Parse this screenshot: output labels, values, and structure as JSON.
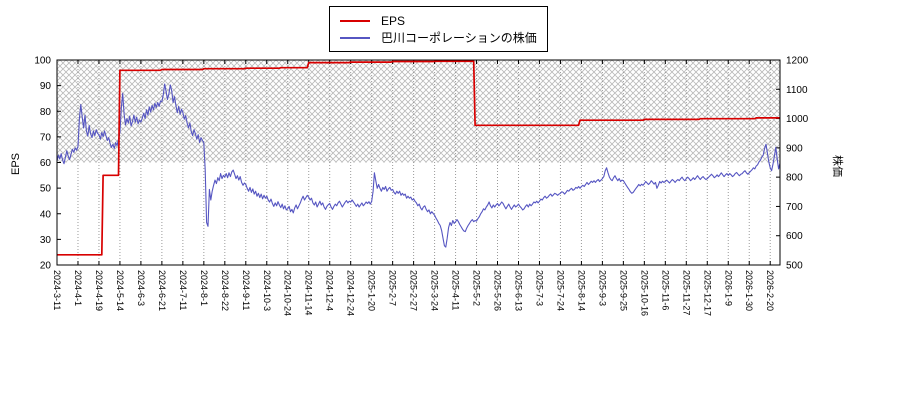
{
  "chart_data": {
    "type": "line",
    "title": "",
    "legend_position": "top-center",
    "label_interval": 15,
    "x_index_max": 517,
    "x_tick_labels": [
      "2024-3-11",
      "2024-4-1",
      "2024-4-19",
      "2024-5-14",
      "2024-6-3",
      "2024-6-21",
      "2024-7-11",
      "2024-8-1",
      "2024-8-22",
      "2024-9-11",
      "2024-10-3",
      "2024-10-24",
      "2024-11-14",
      "2024-12-4",
      "2024-12-24",
      "2025-1-20",
      "2025-2-7",
      "2025-2-27",
      "2025-3-24",
      "2025-4-11",
      "2025-5-2",
      "2025-5-26",
      "2025-6-13",
      "2025-7-3",
      "2025-7-24",
      "2025-8-14",
      "2025-9-3",
      "2025-9-25",
      "2025-10-16",
      "2025-11-6",
      "2025-11-27",
      "2025-12-17",
      "2026-1-9",
      "2026-1-30",
      "2026-2-20"
    ],
    "left_axis": {
      "label": "EPS",
      "min": 20,
      "max": 100,
      "ticks": [
        20,
        30,
        40,
        50,
        60,
        70,
        80,
        90,
        100
      ]
    },
    "right_axis": {
      "label": "株価",
      "min": 500,
      "max": 1200,
      "ticks": [
        500,
        600,
        700,
        800,
        900,
        1000,
        1100,
        1200
      ]
    },
    "band": {
      "axis": "left",
      "from": 60,
      "to": 100,
      "pattern": "crosshatch",
      "color": "#b9b9b9"
    },
    "grid": {
      "vertical": "dotted",
      "color": "#9a9a9a"
    },
    "frame_color": "#000000",
    "series": [
      {
        "name": "EPS",
        "axis": "left",
        "color": "#d80000",
        "points": [
          [
            0,
            24
          ],
          [
            32,
            24
          ],
          [
            33,
            55
          ],
          [
            44,
            55
          ],
          [
            45,
            96
          ],
          [
            74,
            96
          ],
          [
            75,
            96.3
          ],
          [
            104,
            96.3
          ],
          [
            105,
            96.6
          ],
          [
            134,
            96.6
          ],
          [
            135,
            96.8
          ],
          [
            159,
            96.8
          ],
          [
            160,
            97
          ],
          [
            179,
            97
          ],
          [
            180,
            99
          ],
          [
            209,
            99
          ],
          [
            210,
            99.2
          ],
          [
            239,
            99.2
          ],
          [
            240,
            99.4
          ],
          [
            269,
            99.4
          ],
          [
            270,
            99.5
          ],
          [
            298,
            99.5
          ],
          [
            299,
            74.5
          ],
          [
            373,
            74.5
          ],
          [
            374,
            76.5
          ],
          [
            419,
            76.5
          ],
          [
            420,
            76.8
          ],
          [
            459,
            76.8
          ],
          [
            460,
            77.1
          ],
          [
            499,
            77.1
          ],
          [
            500,
            77.4
          ],
          [
            517,
            77.4
          ]
        ]
      },
      {
        "name": "巴川コーポレーションの株価",
        "axis": "right",
        "color": "#5656c2",
        "values": [
          855,
          875,
          862,
          880,
          858,
          846,
          868,
          890,
          872,
          860,
          878,
          895,
          885,
          900,
          892,
          905,
          1000,
          1048,
          1005,
          968,
          1012,
          958,
          940,
          976,
          948,
          935,
          958,
          942,
          962,
          950,
          944,
          930,
          952,
          938,
          958,
          942,
          925,
          935,
          915,
          902,
          912,
          898,
          918,
          908,
          930,
          952,
          1035,
          1086,
          1015,
          978,
          1000,
          985,
          1008,
          975,
          990,
          1012,
          988,
          1005,
          982,
          995,
          988,
          1002,
          1018,
          1000,
          1030,
          1012,
          1040,
          1022,
          1045,
          1030,
          1052,
          1038,
          1055,
          1042,
          1060,
          1058,
          1082,
          1118,
          1092,
          1065,
          1085,
          1115,
          1095,
          1055,
          1075,
          1045,
          1020,
          1042,
          1015,
          1032,
          1020,
          998,
          1010,
          985,
          968,
          985,
          955,
          942,
          962,
          948,
          930,
          945,
          918,
          935,
          925,
          918,
          825,
          645,
          632,
          758,
          722,
          752,
          772,
          790,
          778,
          798,
          788,
          812,
          795,
          806,
          800,
          812,
          798,
          815,
          802,
          818,
          824,
          810,
          795,
          805,
          790,
          802,
          782,
          772,
          780,
          775,
          762,
          752,
          765,
          748,
          760,
          742,
          752,
          735,
          745,
          730,
          742,
          726,
          738,
          728,
          735,
          722,
          715,
          725,
          710,
          700,
          712,
          702,
          716,
          705,
          696,
          708,
          692,
          702,
          688,
          692,
          700,
          682,
          690,
          678,
          695,
          705,
          692,
          702,
          712,
          725,
          735,
          722,
          730,
          738,
          732,
          722,
          728,
          712,
          705,
          715,
          698,
          708,
          718,
          705,
          712,
          698,
          690,
          700,
          706,
          710,
          698,
          690,
          700,
          708,
          702,
          712,
          718,
          708,
          698,
          706,
          714,
          720,
          712,
          718,
          715,
          722,
          715,
          708,
          700,
          708,
          698,
          705,
          712,
          702,
          708,
          715,
          710,
          716,
          708,
          718,
          752,
          815,
          788,
          762,
          775,
          762,
          752,
          765,
          758,
          768,
          752,
          760,
          765,
          755,
          758,
          748,
          742,
          752,
          745,
          752,
          738,
          745,
          738,
          742,
          728,
          735,
          728,
          732,
          722,
          726,
          718,
          712,
          702,
          708,
          695,
          688,
          698,
          702,
          690,
          682,
          688,
          675,
          682,
          676,
          670,
          660,
          652,
          642,
          635,
          618,
          592,
          566,
          561,
          592,
          628,
          645,
          635,
          652,
          642,
          648,
          655,
          648,
          638,
          630,
          622,
          616,
          614,
          626,
          635,
          642,
          650,
          655,
          648,
          652,
          650,
          658,
          665,
          675,
          682,
          692,
          688,
          698,
          705,
          715,
          702,
          695,
          705,
          698,
          705,
          710,
          702,
          708,
          715,
          710,
          700,
          692,
          700,
          708,
          698,
          690,
          698,
          705,
          698,
          702,
          708,
          700,
          695,
          688,
          692,
          700,
          706,
          698,
          708,
          702,
          708,
          715,
          712,
          718,
          712,
          718,
          725,
          722,
          730,
          735,
          728,
          732,
          738,
          742,
          735,
          740,
          745,
          742,
          738,
          742,
          745,
          750,
          748,
          742,
          748,
          755,
          752,
          758,
          762,
          755,
          758,
          765,
          762,
          768,
          762,
          768,
          772,
          768,
          775,
          782,
          775,
          780,
          786,
          782,
          788,
          782,
          788,
          792,
          785,
          790,
          795,
          802,
          822,
          832,
          815,
          800,
          792,
          788,
          798,
          805,
          795,
          788,
          795,
          785,
          790,
          788,
          780,
          772,
          765,
          758,
          750,
          745,
          748,
          755,
          762,
          768,
          775,
          770,
          776,
          772,
          778,
          785,
          780,
          775,
          780,
          788,
          782,
          776,
          782,
          762,
          772,
          785,
          780,
          786,
          782,
          785,
          790,
          785,
          780,
          786,
          792,
          788,
          782,
          788,
          792,
          788,
          795,
          800,
          792,
          788,
          795,
          800,
          795,
          788,
          792,
          798,
          792,
          798,
          805,
          798,
          792,
          798,
          802,
          796,
          792,
          795,
          800,
          805,
          810,
          805,
          798,
          802,
          808,
          802,
          808,
          815,
          808,
          802,
          808,
          812,
          806,
          812,
          808,
          802,
          806,
          812,
          816,
          810,
          805,
          810,
          812,
          818,
          822,
          815,
          810,
          815,
          820,
          825,
          832,
          828,
          838,
          842,
          852,
          858,
          868,
          875,
          898,
          912,
          882,
          852,
          832,
          822,
          845,
          872,
          902,
          862,
          828,
          848
        ]
      }
    ]
  }
}
